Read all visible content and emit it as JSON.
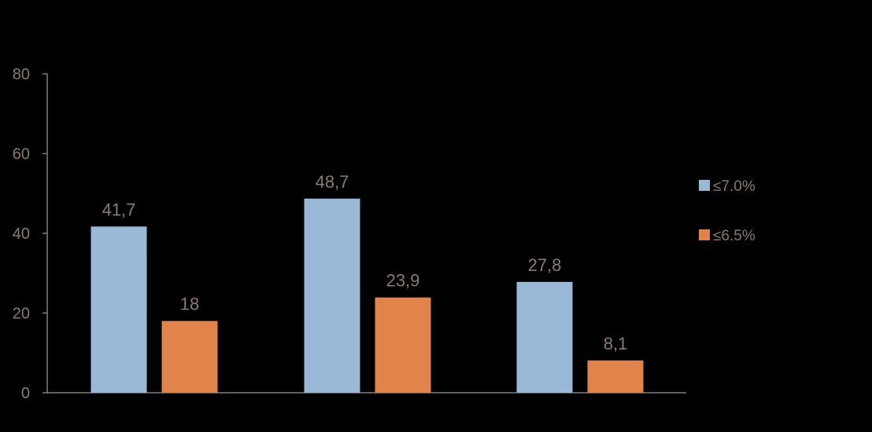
{
  "chart_data": {
    "type": "bar",
    "categories": [
      "",
      "",
      ""
    ],
    "series": [
      {
        "name": "≤7.0%",
        "color": "#9ab9d6",
        "values": [
          41.7,
          48.7,
          27.8
        ],
        "labels": [
          "41,7",
          "48,7",
          "27,8"
        ]
      },
      {
        "name": "≤6.5%",
        "color": "#e0844b",
        "values": [
          18,
          23.9,
          8.1
        ],
        "labels": [
          "18",
          "23,9",
          "8,1"
        ]
      }
    ],
    "title": "",
    "xlabel": "",
    "ylabel": "",
    "ylim": [
      0,
      80
    ],
    "yticks": [
      0,
      20,
      40,
      60,
      80
    ],
    "ytick_labels": [
      "0",
      "20",
      "40",
      "60",
      "80"
    ],
    "grid": false,
    "legend_position": "right",
    "colors": {
      "background": "#000000",
      "axis": "#7f7f7f",
      "text": "#8a7a6e"
    }
  }
}
